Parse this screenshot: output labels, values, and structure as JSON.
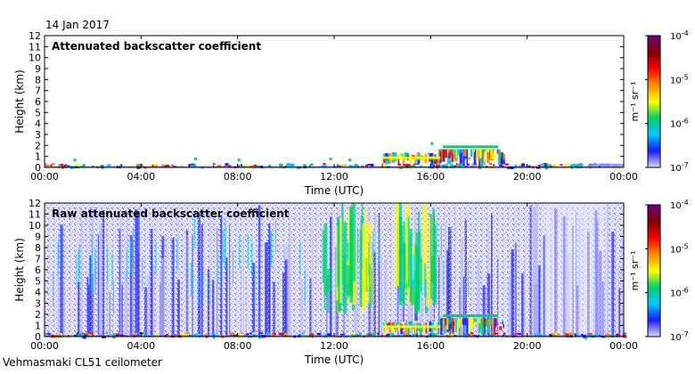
{
  "date": "14 Jan 2017",
  "station": "Vehmasmaki CL51 ceilometer",
  "chart_data": [
    {
      "type": "heatmap",
      "title": "Attenuated backscatter coefficient",
      "xlabel": "Time (UTC)",
      "ylabel": "Height (km)",
      "xticks": [
        "00:00",
        "04:00",
        "08:00",
        "12:00",
        "16:00",
        "20:00",
        "00:00"
      ],
      "xlim": [
        0,
        24
      ],
      "yticks": [
        0,
        1,
        2,
        3,
        4,
        5,
        6,
        7,
        8,
        9,
        10,
        11,
        12
      ],
      "ylim": [
        0,
        12
      ],
      "colorbar": {
        "label": "m⁻¹ sr⁻¹",
        "scale": "log",
        "range": [
          1e-07,
          0.0001
        ],
        "ticks": [
          {
            "value": 0.0001,
            "base": "10",
            "exp": "-4"
          },
          {
            "value": 1e-05,
            "base": "10",
            "exp": "-5"
          },
          {
            "value": 1e-06,
            "base": "10",
            "exp": "-6"
          },
          {
            "value": 1e-07,
            "base": "10",
            "exp": "-7"
          }
        ]
      },
      "features": [
        {
          "feature": "near-surface layer",
          "time": [
            0,
            24
          ],
          "height": [
            0,
            0.3
          ]
        },
        {
          "feature": "low cloud base",
          "time": [
            14,
            19
          ],
          "height": [
            0.3,
            2.0
          ]
        },
        {
          "feature": "cloud base",
          "time": [
            16.5,
            18.8
          ],
          "height": [
            1.6,
            2.0
          ]
        }
      ]
    },
    {
      "type": "heatmap",
      "title": "Raw attenuated backscatter coefficient",
      "xlabel": "Time (UTC)",
      "ylabel": "Height (km)",
      "xticks": [
        "00:00",
        "04:00",
        "08:00",
        "12:00",
        "16:00",
        "20:00",
        "00:00"
      ],
      "xlim": [
        0,
        24
      ],
      "yticks": [
        0,
        1,
        2,
        3,
        4,
        5,
        6,
        7,
        8,
        9,
        10,
        11,
        12
      ],
      "ylim": [
        0,
        12
      ],
      "colorbar": {
        "label": "m⁻¹ sr⁻¹",
        "scale": "log",
        "range": [
          1e-07,
          0.0001
        ],
        "ticks": [
          {
            "value": 0.0001,
            "base": "10",
            "exp": "-4"
          },
          {
            "value": 1e-05,
            "base": "10",
            "exp": "-5"
          },
          {
            "value": 1e-06,
            "base": "10",
            "exp": "-6"
          },
          {
            "value": 1e-07,
            "base": "10",
            "exp": "-7"
          }
        ]
      },
      "features": [
        {
          "feature": "noisy background",
          "time": [
            0,
            24
          ],
          "height": [
            0,
            12
          ]
        },
        {
          "feature": "enhanced signal",
          "time": [
            11.5,
            13.5
          ],
          "height": [
            2,
            12
          ]
        },
        {
          "feature": "enhanced signal",
          "time": [
            14.5,
            16.2
          ],
          "height": [
            2,
            12
          ]
        },
        {
          "feature": "low cloud base",
          "time": [
            14,
            19
          ],
          "height": [
            0.3,
            2.0
          ]
        }
      ]
    }
  ],
  "colors": {
    "colormap": [
      "#d8d8ff",
      "#1a1aff",
      "#00c8ff",
      "#00d26e",
      "#ffff00",
      "#ff8c00",
      "#ff0000",
      "#800000",
      "#6e007e"
    ],
    "axis": "#000000",
    "background": "#ffffff"
  }
}
